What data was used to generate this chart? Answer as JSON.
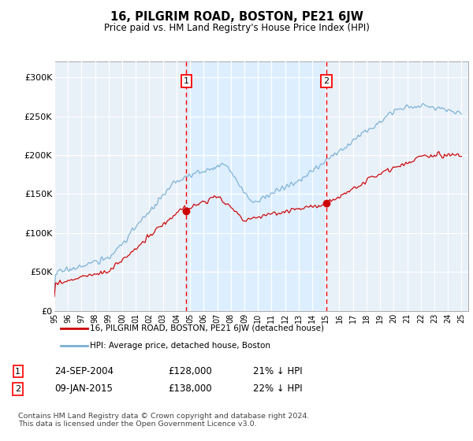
{
  "title": "16, PILGRIM ROAD, BOSTON, PE21 6JW",
  "subtitle": "Price paid vs. HM Land Registry's House Price Index (HPI)",
  "ylim": [
    0,
    320000
  ],
  "yticks": [
    0,
    50000,
    100000,
    150000,
    200000,
    250000,
    300000
  ],
  "ytick_labels": [
    "£0",
    "£50K",
    "£100K",
    "£150K",
    "£200K",
    "£250K",
    "£300K"
  ],
  "hpi_color": "#7ab0d4",
  "price_color": "#cc0000",
  "shade_color": "#ddeeff",
  "bg_color": "#e8f0f8",
  "sale1_price": 128000,
  "sale1_hpi_pct": "21% ↓ HPI",
  "sale1_date": "24-SEP-2004",
  "sale1_year": 2004.73,
  "sale2_price": 138000,
  "sale2_hpi_pct": "22% ↓ HPI",
  "sale2_date": "09-JAN-2015",
  "sale2_year": 2015.03,
  "legend_label1": "16, PILGRIM ROAD, BOSTON, PE21 6JW (detached house)",
  "legend_label2": "HPI: Average price, detached house, Boston",
  "footer": "Contains HM Land Registry data © Crown copyright and database right 2024.\nThis data is licensed under the Open Government Licence v3.0."
}
